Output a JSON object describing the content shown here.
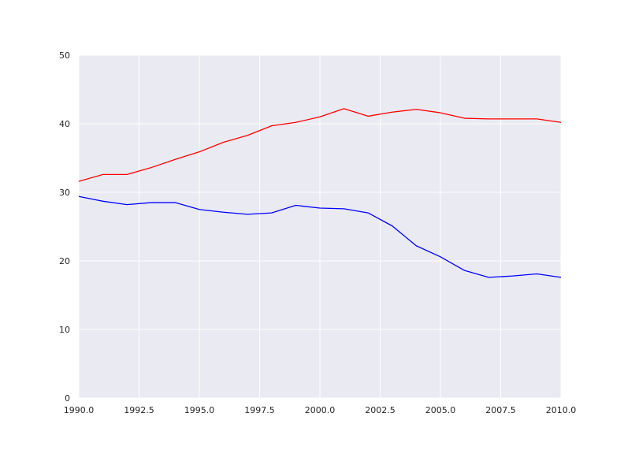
{
  "chart_data": {
    "type": "line",
    "title": "",
    "xlabel": "",
    "ylabel": "",
    "xlim": [
      1990,
      2010
    ],
    "ylim": [
      0,
      50
    ],
    "grid": true,
    "x_ticks": [
      1990,
      1992.5,
      1995,
      1997.5,
      2000,
      2002.5,
      2005,
      2007.5,
      2010
    ],
    "x_tick_labels": [
      "1990.0",
      "1992.5",
      "1995.0",
      "1997.5",
      "2000.0",
      "2002.5",
      "2005.0",
      "2007.5",
      "2010.0"
    ],
    "y_ticks": [
      0,
      10,
      20,
      30,
      40,
      50
    ],
    "y_tick_labels": [
      "0",
      "10",
      "20",
      "30",
      "40",
      "50"
    ],
    "x": [
      1990,
      1991,
      1992,
      1993,
      1994,
      1995,
      1996,
      1997,
      1998,
      1999,
      2000,
      2001,
      2002,
      2003,
      2004,
      2005,
      2006,
      2007,
      2008,
      2009,
      2010
    ],
    "series": [
      {
        "color": "#ff0000",
        "values": [
          31.6,
          32.6,
          32.6,
          33.6,
          34.8,
          35.9,
          37.3,
          38.3,
          39.7,
          40.2,
          41.0,
          42.2,
          41.1,
          41.7,
          42.1,
          41.6,
          40.8,
          40.7,
          40.7,
          40.7,
          40.2
        ]
      },
      {
        "color": "#0000ff",
        "values": [
          29.4,
          28.7,
          28.2,
          28.5,
          28.5,
          27.5,
          27.1,
          26.8,
          27.0,
          28.1,
          27.7,
          27.6,
          27.0,
          25.1,
          22.2,
          20.6,
          18.6,
          17.6,
          17.8,
          18.1,
          17.6
        ]
      }
    ]
  }
}
